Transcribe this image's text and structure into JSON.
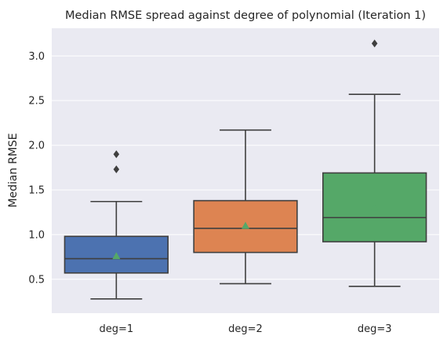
{
  "chart_data": {
    "type": "box",
    "title": "Median RMSE spread against degree of polynomial (Iteration 1)",
    "xlabel": "",
    "ylabel": "Median RMSE",
    "categories": [
      "deg=1",
      "deg=2",
      "deg=3"
    ],
    "ylim": [
      0.12,
      3.31
    ],
    "yticks": [
      0.5,
      1.0,
      1.5,
      2.0,
      2.5,
      3.0
    ],
    "ytick_labels": [
      "0.5",
      "1.0",
      "1.5",
      "2.0",
      "2.5",
      "3.0"
    ],
    "grid": true,
    "boxes": [
      {
        "category": "deg=1",
        "whisker_low": 0.28,
        "q1": 0.57,
        "median": 0.73,
        "q3": 0.98,
        "whisker_high": 1.37,
        "mean": 0.76,
        "outliers": [
          1.73,
          1.9
        ],
        "color": "#4c72b0"
      },
      {
        "category": "deg=2",
        "whisker_low": 0.45,
        "q1": 0.8,
        "median": 1.07,
        "q3": 1.38,
        "whisker_high": 2.17,
        "mean": 1.1,
        "outliers": [],
        "color": "#dd8452"
      },
      {
        "category": "deg=3",
        "whisker_low": 0.42,
        "q1": 0.92,
        "median": 1.19,
        "q3": 1.69,
        "whisker_high": 2.57,
        "mean": 1.3,
        "outliers": [
          3.14
        ],
        "color": "#55a868"
      }
    ],
    "colors": {
      "background": "#eaeaf2",
      "grid": "#ffffff",
      "line": "#3f3f3f",
      "mean_marker": "#55a868"
    }
  }
}
